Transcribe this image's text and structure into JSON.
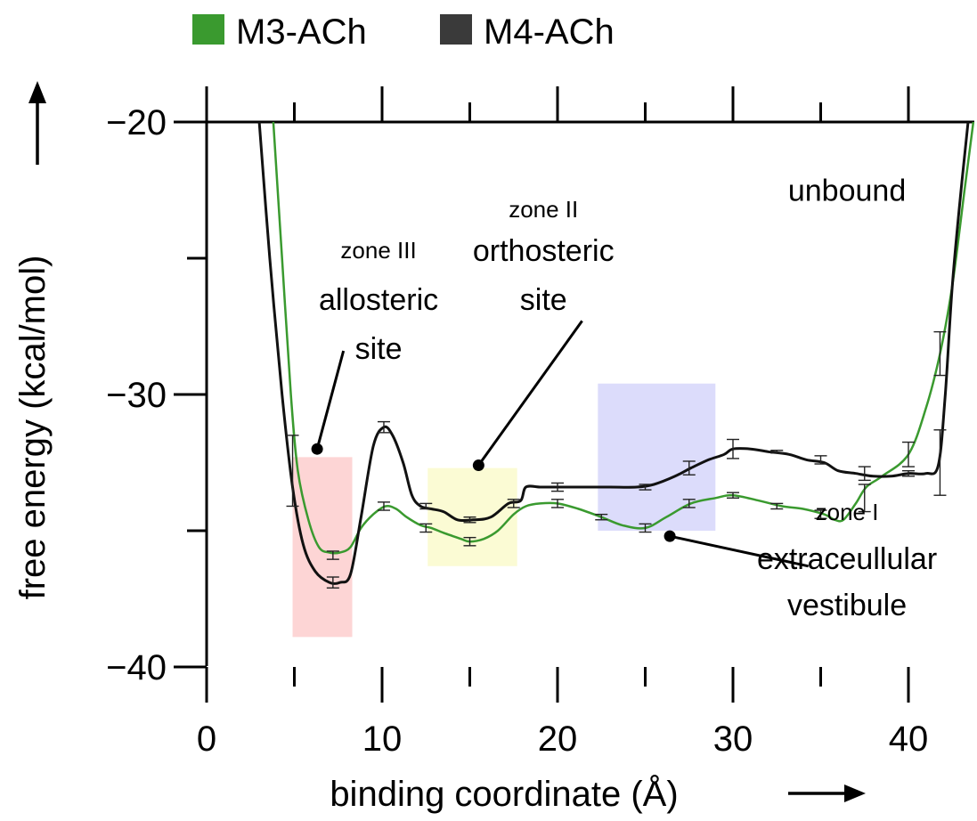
{
  "chart_data": {
    "type": "line",
    "xlabel": "binding coordinate (Å)",
    "ylabel": "free energy (kcal/mol)",
    "xlim": [
      0,
      44
    ],
    "ylim": [
      -40,
      -20
    ],
    "xticks": [
      0,
      10,
      20,
      30,
      40
    ],
    "yticks": [
      -40,
      -30,
      -20
    ],
    "xtick_labels": [
      "0",
      "10",
      "20",
      "30",
      "40"
    ],
    "ytick_labels": [
      "−40",
      "−30",
      "−20"
    ],
    "legend_position": "top-left",
    "series": [
      {
        "name": "M3-ACh",
        "color": "#3a9a2f",
        "points": [
          [
            3.8,
            -20
          ],
          [
            4.3,
            -25
          ],
          [
            4.8,
            -30
          ],
          [
            5.2,
            -32.8
          ],
          [
            5.8,
            -34.6
          ],
          [
            6.4,
            -35.6
          ],
          [
            7.0,
            -35.8
          ],
          [
            7.6,
            -35.8
          ],
          [
            8.2,
            -35.6
          ],
          [
            8.8,
            -34.9
          ],
          [
            9.5,
            -34.4
          ],
          [
            10.2,
            -34.1
          ],
          [
            10.8,
            -34.2
          ],
          [
            11.4,
            -34.5
          ],
          [
            12.2,
            -34.8
          ],
          [
            12.8,
            -34.9
          ],
          [
            13.6,
            -35.1
          ],
          [
            14.5,
            -35.3
          ],
          [
            15.0,
            -35.4
          ],
          [
            15.8,
            -35.3
          ],
          [
            16.6,
            -35.0
          ],
          [
            17.5,
            -34.4
          ],
          [
            18.2,
            -34.1
          ],
          [
            19.0,
            -34.0
          ],
          [
            20.0,
            -34.0
          ],
          [
            21.2,
            -34.2
          ],
          [
            22.5,
            -34.5
          ],
          [
            23.7,
            -34.8
          ],
          [
            25.0,
            -34.9
          ],
          [
            26.2,
            -34.5
          ],
          [
            27.6,
            -34.0
          ],
          [
            29.0,
            -33.8
          ],
          [
            30.0,
            -33.7
          ],
          [
            31.5,
            -33.9
          ],
          [
            32.8,
            -34.1
          ],
          [
            34.0,
            -34.2
          ],
          [
            35.2,
            -34.4
          ],
          [
            35.8,
            -34.6
          ],
          [
            36.3,
            -34.6
          ],
          [
            37.0,
            -34.0
          ],
          [
            37.6,
            -33.4
          ],
          [
            38.5,
            -33.0
          ],
          [
            40.0,
            -32.2
          ],
          [
            41.0,
            -30.5
          ],
          [
            41.8,
            -28.5
          ],
          [
            42.5,
            -26.0
          ],
          [
            43.2,
            -22.5
          ],
          [
            43.7,
            -20
          ]
        ]
      },
      {
        "name": "M4-ACh",
        "color": "#111111",
        "points": [
          [
            3.0,
            -20
          ],
          [
            3.6,
            -25
          ],
          [
            4.3,
            -30
          ],
          [
            4.9,
            -33.4
          ],
          [
            5.5,
            -35.5
          ],
          [
            6.2,
            -36.5
          ],
          [
            7.0,
            -36.9
          ],
          [
            7.6,
            -36.9
          ],
          [
            8.2,
            -36.6
          ],
          [
            8.8,
            -34.5
          ],
          [
            9.5,
            -31.9
          ],
          [
            10.1,
            -31.2
          ],
          [
            10.6,
            -31.5
          ],
          [
            11.2,
            -32.5
          ],
          [
            11.7,
            -33.7
          ],
          [
            12.2,
            -34.1
          ],
          [
            12.8,
            -34.2
          ],
          [
            13.5,
            -34.3
          ],
          [
            14.3,
            -34.6
          ],
          [
            15.2,
            -34.6
          ],
          [
            16.2,
            -34.5
          ],
          [
            17.2,
            -34.0
          ],
          [
            17.9,
            -33.9
          ],
          [
            18.2,
            -33.4
          ],
          [
            19.0,
            -33.4
          ],
          [
            20.0,
            -33.4
          ],
          [
            21.5,
            -33.4
          ],
          [
            23.0,
            -33.4
          ],
          [
            24.5,
            -33.4
          ],
          [
            25.5,
            -33.3
          ],
          [
            26.7,
            -33.0
          ],
          [
            27.6,
            -32.7
          ],
          [
            28.6,
            -32.4
          ],
          [
            29.5,
            -32.2
          ],
          [
            30.0,
            -32.0
          ],
          [
            31.0,
            -32.0
          ],
          [
            32.0,
            -32.1
          ],
          [
            33.2,
            -32.2
          ],
          [
            34.2,
            -32.4
          ],
          [
            35.2,
            -32.5
          ],
          [
            36.0,
            -32.8
          ],
          [
            37.0,
            -32.9
          ],
          [
            38.0,
            -33.0
          ],
          [
            39.0,
            -33.0
          ],
          [
            40.0,
            -32.9
          ],
          [
            41.0,
            -32.9
          ],
          [
            41.7,
            -32.6
          ],
          [
            42.1,
            -30.0
          ],
          [
            42.5,
            -26.0
          ],
          [
            43.0,
            -22.5
          ],
          [
            43.4,
            -20
          ]
        ]
      }
    ],
    "error_bars": [
      {
        "series": "M3-ACh",
        "x": 7.2,
        "y": -35.9,
        "err": 0.15
      },
      {
        "series": "M3-ACh",
        "x": 10.1,
        "y": -34.1,
        "err": 0.15
      },
      {
        "series": "M3-ACh",
        "x": 12.5,
        "y": -34.9,
        "err": 0.15
      },
      {
        "series": "M3-ACh",
        "x": 15.0,
        "y": -35.4,
        "err": 0.15
      },
      {
        "series": "M3-ACh",
        "x": 20.0,
        "y": -34.0,
        "err": 0.15
      },
      {
        "series": "M3-ACh",
        "x": 22.5,
        "y": -34.5,
        "err": 0.1
      },
      {
        "series": "M3-ACh",
        "x": 25.0,
        "y": -34.9,
        "err": 0.15
      },
      {
        "series": "M3-ACh",
        "x": 27.5,
        "y": -34.0,
        "err": 0.15
      },
      {
        "series": "M3-ACh",
        "x": 30.0,
        "y": -33.7,
        "err": 0.1
      },
      {
        "series": "M3-ACh",
        "x": 32.5,
        "y": -34.1,
        "err": 0.1
      },
      {
        "series": "M3-ACh",
        "x": 35.0,
        "y": -34.4,
        "err": 0.15
      },
      {
        "series": "M3-ACh",
        "x": 37.5,
        "y": -33.8,
        "err": 0.5
      },
      {
        "series": "M3-ACh",
        "x": 40.0,
        "y": -32.2,
        "err": 0.45
      },
      {
        "series": "M3-ACh",
        "x": 41.8,
        "y": -28.5,
        "err": 0.8
      },
      {
        "series": "M4-ACh",
        "x": 4.9,
        "y": -32.8,
        "err": 1.3
      },
      {
        "series": "M4-ACh",
        "x": 7.2,
        "y": -36.9,
        "err": 0.2
      },
      {
        "series": "M4-ACh",
        "x": 10.1,
        "y": -31.2,
        "err": 0.2
      },
      {
        "series": "M4-ACh",
        "x": 12.5,
        "y": -34.1,
        "err": 0.1
      },
      {
        "series": "M4-ACh",
        "x": 15.0,
        "y": -34.6,
        "err": 0.1
      },
      {
        "series": "M4-ACh",
        "x": 17.5,
        "y": -34.0,
        "err": 0.15
      },
      {
        "series": "M4-ACh",
        "x": 20.0,
        "y": -33.4,
        "err": 0.15
      },
      {
        "series": "M4-ACh",
        "x": 25.0,
        "y": -33.4,
        "err": 0.1
      },
      {
        "series": "M4-ACh",
        "x": 27.5,
        "y": -32.7,
        "err": 0.25
      },
      {
        "series": "M4-ACh",
        "x": 30.0,
        "y": -32.0,
        "err": 0.35
      },
      {
        "series": "M4-ACh",
        "x": 32.5,
        "y": -32.1,
        "err": 0.05
      },
      {
        "series": "M4-ACh",
        "x": 35.0,
        "y": -32.4,
        "err": 0.15
      },
      {
        "series": "M4-ACh",
        "x": 37.5,
        "y": -32.9,
        "err": 0.25
      },
      {
        "series": "M4-ACh",
        "x": 40.0,
        "y": -32.9,
        "err": 0.1
      },
      {
        "series": "M4-ACh",
        "x": 41.8,
        "y": -32.5,
        "err": 1.2
      }
    ],
    "regions": [
      {
        "name": "zone III",
        "x0": 4.9,
        "x1": 8.3,
        "y0": -38.9,
        "y1": -32.3,
        "color": "#fdd5d5"
      },
      {
        "name": "zone II",
        "x0": 12.6,
        "x1": 17.7,
        "y0": -36.3,
        "y1": -32.7,
        "color": "#fbfbd4"
      },
      {
        "name": "zone I",
        "x0": 22.3,
        "x1": 29.0,
        "y0": -35.0,
        "y1": -29.6,
        "color": "#dcdcfb"
      }
    ],
    "annotations": [
      {
        "key": "zone3",
        "small": "zone III",
        "lines": [
          "allosteric",
          "site"
        ],
        "x": 9.8,
        "y_small": -25.0,
        "y_lines": [
          -26.9,
          -28.7
        ],
        "dot": [
          6.3,
          -32.0
        ],
        "leader_to": [
          7.8,
          -28.4
        ]
      },
      {
        "key": "zone2",
        "small": "zone II",
        "lines": [
          "orthosteric",
          "site"
        ],
        "x": 19.2,
        "y_small": -23.5,
        "y_lines": [
          -25.1,
          -26.9
        ],
        "dot": [
          15.5,
          -32.6
        ],
        "leader_to": [
          21.4,
          -27.3
        ]
      },
      {
        "key": "unbound",
        "small": "",
        "lines": [
          "unbound"
        ],
        "x": 36.5,
        "y_small": null,
        "y_lines": [
          -22.9
        ],
        "dot": null,
        "leader_to": null
      },
      {
        "key": "zone1",
        "small": "zone I",
        "lines": [
          "extraceullular",
          "vestibule"
        ],
        "x": 36.5,
        "y_small": -34.6,
        "y_lines": [
          -36.4,
          -38.1
        ],
        "dot": [
          26.4,
          -35.2
        ],
        "leader_to": [
          34.3,
          -36.3
        ]
      }
    ]
  }
}
